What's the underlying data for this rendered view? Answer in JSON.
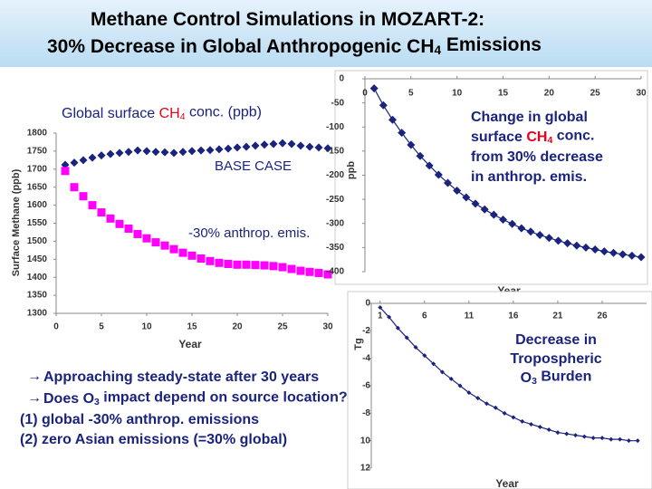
{
  "title": [
    [
      "Methane Control Simulations in MOZART-2:"
    ],
    [
      "30% Decrease in Global Anthropogenic CH",
      {
        "text": "4",
        "sub": true
      },
      " Emissions"
    ]
  ],
  "bullets": [
    [
      "Approaching steady-state after 30 years"
    ],
    [
      "Does O",
      {
        "text": "3",
        "sub": true
      },
      " impact depend on source location?"
    ],
    [
      "(1) global -30% anthrop. emissions"
    ],
    [
      "(2) zero Asian emissions (=30% global)"
    ]
  ],
  "chart_data": [
    {
      "type": "line",
      "title": [
        "Global surface ",
        {
          "text": "CH",
          "color": "#e8001c"
        },
        {
          "text": "4",
          "sub": true,
          "color": "#e8001c"
        },
        " conc. (ppb)"
      ],
      "x_label": "Year",
      "y_label": "Surface Methane (ppb)",
      "xlim": [
        0,
        30
      ],
      "xticks": [
        0,
        5,
        10,
        15,
        20,
        25,
        30
      ],
      "ylim": [
        1300,
        1800
      ],
      "yticks": [
        1300,
        1350,
        1400,
        1450,
        1500,
        1550,
        1600,
        1650,
        1700,
        1750,
        1800
      ],
      "x": [
        1,
        2,
        3,
        4,
        5,
        6,
        7,
        8,
        9,
        10,
        11,
        12,
        13,
        14,
        15,
        16,
        17,
        18,
        19,
        20,
        21,
        22,
        23,
        24,
        25,
        26,
        27,
        28,
        29,
        30
      ],
      "series": [
        {
          "name": "BASE CASE",
          "color": "#1a237e",
          "marker": "diamond",
          "values": [
            1712,
            1718,
            1725,
            1732,
            1738,
            1742,
            1745,
            1748,
            1752,
            1750,
            1748,
            1747,
            1745,
            1748,
            1750,
            1752,
            1753,
            1755,
            1757,
            1760,
            1762,
            1765,
            1768,
            1770,
            1772,
            1770,
            1765,
            1762,
            1760,
            1758
          ]
        },
        {
          "name": "-30% anthrop. emis.",
          "color": "#ff00ff",
          "marker": "square",
          "values": [
            1695,
            1650,
            1625,
            1600,
            1580,
            1563,
            1548,
            1535,
            1520,
            1508,
            1497,
            1488,
            1478,
            1468,
            1460,
            1452,
            1445,
            1440,
            1437,
            1435,
            1435,
            1434,
            1433,
            1431,
            1428,
            1423,
            1418,
            1415,
            1412,
            1408
          ]
        }
      ]
    },
    {
      "type": "line",
      "x_label": "Year",
      "y_label": "ppb",
      "note": [
        [
          "Change in global"
        ],
        [
          "surface ",
          {
            "text": "CH",
            "color": "#e8001c"
          },
          {
            "text": "4",
            "sub": true,
            "color": "#e8001c"
          },
          " conc."
        ],
        [
          "from 30% decrease"
        ],
        [
          "in anthrop. emis."
        ]
      ],
      "xlim": [
        0,
        30
      ],
      "xticks": [
        0,
        5,
        10,
        15,
        20,
        25,
        30
      ],
      "ylim": [
        -400,
        0
      ],
      "yticks": [
        0,
        -50,
        -100,
        -150,
        -200,
        -250,
        -300,
        -350,
        -400
      ],
      "x": [
        1,
        2,
        3,
        4,
        5,
        6,
        7,
        8,
        9,
        10,
        11,
        12,
        13,
        14,
        15,
        16,
        17,
        18,
        19,
        20,
        21,
        22,
        23,
        24,
        25,
        26,
        27,
        28,
        29,
        30
      ],
      "series": [
        {
          "color": "#1a237e",
          "marker": "diamond",
          "connect": true,
          "values": [
            -20,
            -55,
            -85,
            -112,
            -137,
            -160,
            -180,
            -199,
            -216,
            -232,
            -246,
            -259,
            -271,
            -282,
            -292,
            -301,
            -310,
            -317,
            -324,
            -330,
            -336,
            -341,
            -346,
            -350,
            -354,
            -358,
            -361,
            -364,
            -367,
            -370
          ]
        }
      ]
    },
    {
      "type": "line",
      "x_label": "Year",
      "y_label": "Tg",
      "note": [
        [
          "Decrease in"
        ],
        [
          "Tropospheric"
        ],
        [
          "O",
          {
            "text": "3",
            "sub": true
          },
          " Burden"
        ]
      ],
      "xlim": [
        0,
        31
      ],
      "xticks": [
        1,
        6,
        11,
        16,
        21,
        26
      ],
      "ylim": [
        -12,
        0
      ],
      "yticks": [
        0,
        -2,
        -4,
        -6,
        -8,
        {
          "value": -10,
          "label": "10"
        },
        {
          "value": -12,
          "label": "12"
        }
      ],
      "x": [
        1,
        2,
        3,
        4,
        5,
        6,
        7,
        8,
        9,
        10,
        11,
        12,
        13,
        14,
        15,
        16,
        17,
        18,
        19,
        20,
        21,
        22,
        23,
        24,
        25,
        26,
        27,
        28,
        29,
        30
      ],
      "series": [
        {
          "color": "#1a237e",
          "marker": "small",
          "connect": true,
          "values": [
            -0.3,
            -1.0,
            -1.8,
            -2.5,
            -3.2,
            -3.8,
            -4.4,
            -5.0,
            -5.5,
            -6.0,
            -6.5,
            -6.9,
            -7.3,
            -7.6,
            -8.0,
            -8.3,
            -8.6,
            -8.8,
            -9.0,
            -9.2,
            -9.4,
            -9.5,
            -9.6,
            -9.7,
            -9.8,
            -9.8,
            -9.9,
            -9.9,
            -10.0,
            -10.0
          ]
        }
      ]
    }
  ]
}
